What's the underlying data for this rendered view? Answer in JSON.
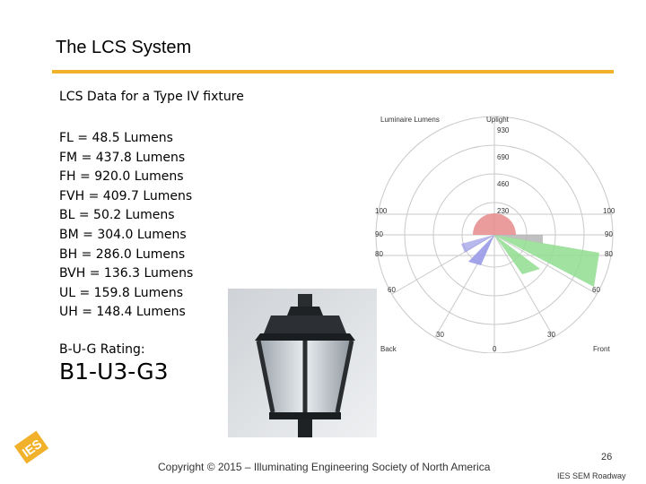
{
  "slide": {
    "title": "The LCS System",
    "subtitle": "LCS Data for a Type IV fixture",
    "lcs_items": [
      "FL = 48.5 Lumens",
      "FM = 437.8 Lumens",
      "FH = 920.0 Lumens",
      "FVH = 409.7 Lumens",
      "BL = 50.2 Lumens",
      "BM = 304.0 Lumens",
      "BH = 286.0 Lumens",
      "BVH = 136.3 Lumens",
      "UL = 159.8 Lumens",
      "UH = 148.4 Lumens"
    ],
    "rating_label": "B-U-G Rating:",
    "rating_value": "B1-U3-G3"
  },
  "polar_chart": {
    "legend_left": "Luminaire Lumens",
    "legend_right": "Uplight",
    "ring_labels": [
      "930",
      "690",
      "460",
      "230"
    ],
    "left_labels": [
      "100",
      "90",
      "80"
    ],
    "right_labels": [
      "100",
      "90",
      "80"
    ],
    "angle_labels_lower": [
      "60",
      "60",
      "30",
      "30"
    ],
    "bottom_labels": [
      "Back",
      "0",
      "Front"
    ],
    "colors": {
      "uplight": "#e89090",
      "front": "#90dd90",
      "back": "#9a9ae8",
      "trapped": "#b0b0b0"
    }
  },
  "footer": {
    "copyright": "Copyright © 2015 – Illuminating Engineering Society of North America",
    "page_number": "26",
    "org": "IES SEM Roadway",
    "logo_text": "IES"
  },
  "colors": {
    "accent_rule": "#f2b12b",
    "logo": "#f2b12b"
  }
}
